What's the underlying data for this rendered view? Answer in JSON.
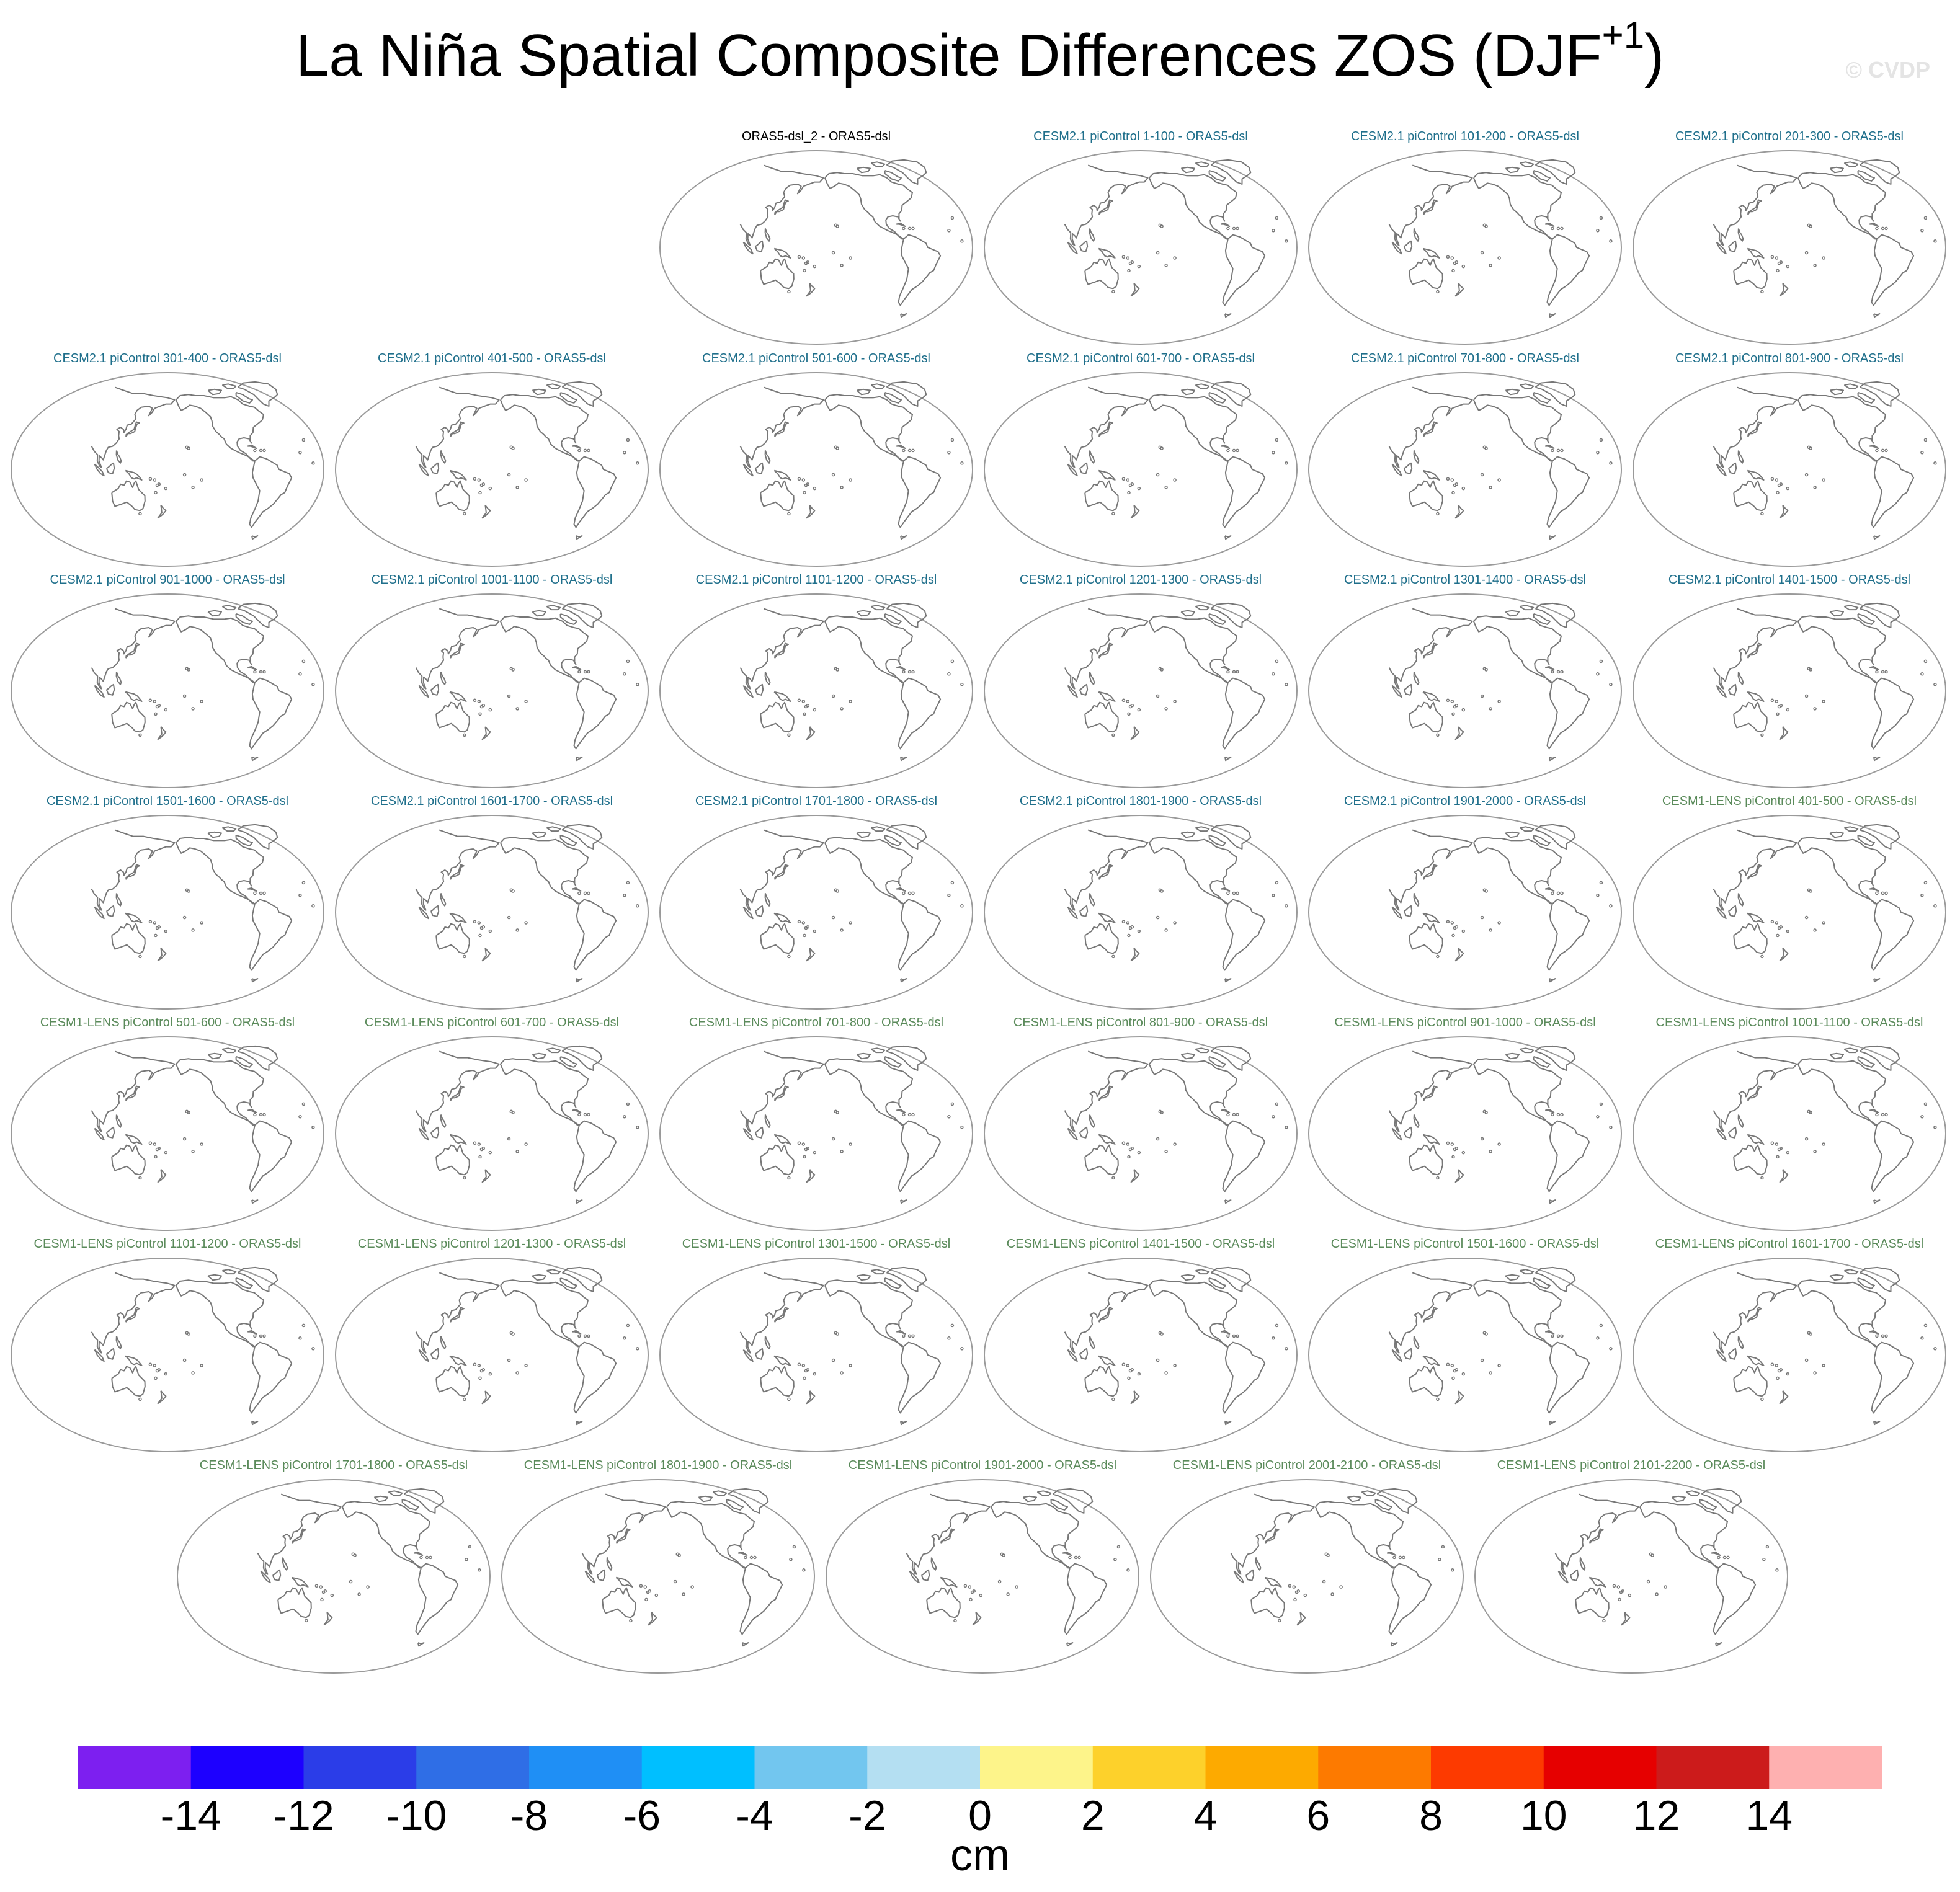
{
  "title": {
    "main": "La Niña Spatial Composite Differences ZOS (DJF",
    "superscript": "+1",
    "close": ")"
  },
  "watermark": "© CVDP",
  "colors": {
    "reference_title": "#000000",
    "cesm2_title": "#1f6f8b",
    "cesm1_title": "#5a8a5a",
    "coastline": "#777777",
    "frame": "#9a9a9a"
  },
  "panels": [
    {
      "row": 0,
      "title": "ORAS5-dsl_2 - ORAS5-dsl",
      "group": "reference"
    },
    {
      "row": 0,
      "title": "CESM2.1 piControl 1-100 - ORAS5-dsl",
      "group": "cesm2"
    },
    {
      "row": 0,
      "title": "CESM2.1 piControl 101-200 - ORAS5-dsl",
      "group": "cesm2"
    },
    {
      "row": 0,
      "title": "CESM2.1 piControl 201-300 - ORAS5-dsl",
      "group": "cesm2"
    },
    {
      "row": 1,
      "title": "CESM2.1 piControl 301-400 - ORAS5-dsl",
      "group": "cesm2"
    },
    {
      "row": 1,
      "title": "CESM2.1 piControl 401-500 - ORAS5-dsl",
      "group": "cesm2"
    },
    {
      "row": 1,
      "title": "CESM2.1 piControl 501-600 - ORAS5-dsl",
      "group": "cesm2"
    },
    {
      "row": 1,
      "title": "CESM2.1 piControl 601-700 - ORAS5-dsl",
      "group": "cesm2"
    },
    {
      "row": 1,
      "title": "CESM2.1 piControl 701-800 - ORAS5-dsl",
      "group": "cesm2"
    },
    {
      "row": 1,
      "title": "CESM2.1 piControl 801-900 - ORAS5-dsl",
      "group": "cesm2"
    },
    {
      "row": 2,
      "title": "CESM2.1 piControl 901-1000 - ORAS5-dsl",
      "group": "cesm2"
    },
    {
      "row": 2,
      "title": "CESM2.1 piControl 1001-1100 - ORAS5-dsl",
      "group": "cesm2"
    },
    {
      "row": 2,
      "title": "CESM2.1 piControl 1101-1200 - ORAS5-dsl",
      "group": "cesm2"
    },
    {
      "row": 2,
      "title": "CESM2.1 piControl 1201-1300 - ORAS5-dsl",
      "group": "cesm2"
    },
    {
      "row": 2,
      "title": "CESM2.1 piControl 1301-1400 - ORAS5-dsl",
      "group": "cesm2"
    },
    {
      "row": 2,
      "title": "CESM2.1 piControl 1401-1500 - ORAS5-dsl",
      "group": "cesm2"
    },
    {
      "row": 3,
      "title": "CESM2.1 piControl 1501-1600 - ORAS5-dsl",
      "group": "cesm2"
    },
    {
      "row": 3,
      "title": "CESM2.1 piControl 1601-1700 - ORAS5-dsl",
      "group": "cesm2"
    },
    {
      "row": 3,
      "title": "CESM2.1 piControl 1701-1800 - ORAS5-dsl",
      "group": "cesm2"
    },
    {
      "row": 3,
      "title": "CESM2.1 piControl 1801-1900 - ORAS5-dsl",
      "group": "cesm2"
    },
    {
      "row": 3,
      "title": "CESM2.1 piControl 1901-2000 - ORAS5-dsl",
      "group": "cesm2"
    },
    {
      "row": 3,
      "title": "CESM1-LENS piControl 401-500 - ORAS5-dsl",
      "group": "cesm1"
    },
    {
      "row": 4,
      "title": "CESM1-LENS piControl 501-600 - ORAS5-dsl",
      "group": "cesm1"
    },
    {
      "row": 4,
      "title": "CESM1-LENS piControl 601-700 - ORAS5-dsl",
      "group": "cesm1"
    },
    {
      "row": 4,
      "title": "CESM1-LENS piControl 701-800 - ORAS5-dsl",
      "group": "cesm1"
    },
    {
      "row": 4,
      "title": "CESM1-LENS piControl 801-900 - ORAS5-dsl",
      "group": "cesm1"
    },
    {
      "row": 4,
      "title": "CESM1-LENS piControl 901-1000 - ORAS5-dsl",
      "group": "cesm1"
    },
    {
      "row": 4,
      "title": "CESM1-LENS piControl 1001-1100 - ORAS5-dsl",
      "group": "cesm1"
    },
    {
      "row": 5,
      "title": "CESM1-LENS piControl 1101-1200 - ORAS5-dsl",
      "group": "cesm1"
    },
    {
      "row": 5,
      "title": "CESM1-LENS piControl 1201-1300 - ORAS5-dsl",
      "group": "cesm1"
    },
    {
      "row": 5,
      "title": "CESM1-LENS piControl 1301-1500 - ORAS5-dsl",
      "group": "cesm1"
    },
    {
      "row": 5,
      "title": "CESM1-LENS piControl 1401-1500 - ORAS5-dsl",
      "group": "cesm1"
    },
    {
      "row": 5,
      "title": "CESM1-LENS piControl 1501-1600 - ORAS5-dsl",
      "group": "cesm1"
    },
    {
      "row": 5,
      "title": "CESM1-LENS piControl 1601-1700 - ORAS5-dsl",
      "group": "cesm1"
    },
    {
      "row": 6,
      "title": "CESM1-LENS piControl 1701-1800 - ORAS5-dsl",
      "group": "cesm1"
    },
    {
      "row": 6,
      "title": "CESM1-LENS piControl 1801-1900 - ORAS5-dsl",
      "group": "cesm1"
    },
    {
      "row": 6,
      "title": "CESM1-LENS piControl 1901-2000 - ORAS5-dsl",
      "group": "cesm1"
    },
    {
      "row": 6,
      "title": "CESM1-LENS piControl 2001-2100 - ORAS5-dsl",
      "group": "cesm1"
    },
    {
      "row": 6,
      "title": "CESM1-LENS piControl 2101-2200 - ORAS5-dsl",
      "group": "cesm1"
    }
  ],
  "colorbar": {
    "colors": [
      "#7d1ff0",
      "#1d00ff",
      "#2b3de8",
      "#2f6ee6",
      "#1f8ff5",
      "#00bfff",
      "#72c6ef",
      "#b4dff2",
      "#fdf48a",
      "#fdd12b",
      "#fdaa00",
      "#fd7a00",
      "#fd3a00",
      "#e60000",
      "#cc1b1b",
      "#feb0b0"
    ],
    "ticks": [
      "-14",
      "-12",
      "-10",
      "-8",
      "-6",
      "-4",
      "-2",
      "0",
      "2",
      "4",
      "6",
      "8",
      "10",
      "12",
      "14"
    ],
    "units": "cm"
  }
}
